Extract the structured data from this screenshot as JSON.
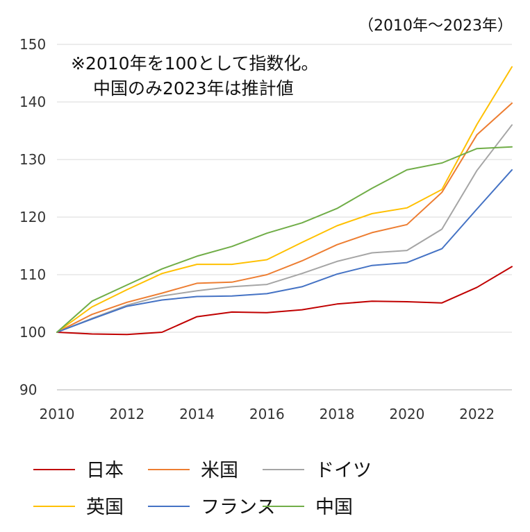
{
  "chart_data": {
    "type": "line",
    "period_label": "（2010年〜2023年）",
    "note_lines": [
      "※2010年を100として指数化。",
      "中国のみ2023年は推計値"
    ],
    "x": [
      2010,
      2011,
      2012,
      2013,
      2014,
      2015,
      2016,
      2017,
      2018,
      2019,
      2020,
      2021,
      2022,
      2023
    ],
    "xticks": [
      "2010",
      "2012",
      "2014",
      "2016",
      "2018",
      "2020",
      "2022"
    ],
    "yticks": [
      "90",
      "100",
      "110",
      "120",
      "130",
      "140",
      "150"
    ],
    "ylim": [
      90,
      150
    ],
    "xlim": [
      2010,
      2023
    ],
    "grid": true,
    "legend_position": "bottom",
    "series": [
      {
        "name": "日本",
        "color": "#c00000",
        "values": [
          100,
          99.7,
          99.6,
          100,
          102.7,
          103.5,
          103.4,
          103.9,
          104.9,
          105.4,
          105.3,
          105.1,
          107.8,
          111.4
        ]
      },
      {
        "name": "米国",
        "color": "#ed7d31",
        "values": [
          100,
          103.1,
          105.2,
          106.8,
          108.5,
          108.7,
          110,
          112.4,
          115.2,
          117.3,
          118.7,
          124.3,
          134.3,
          139.8
        ]
      },
      {
        "name": "ドイツ",
        "color": "#a5a5a5",
        "values": [
          100,
          102.4,
          104.7,
          106.3,
          107.2,
          107.9,
          108.3,
          110.2,
          112.3,
          113.8,
          114.2,
          117.9,
          128.1,
          136
        ]
      },
      {
        "name": "英国",
        "color": "#ffc000",
        "values": [
          100,
          104.4,
          107.4,
          110.2,
          111.8,
          111.8,
          112.6,
          115.6,
          118.5,
          120.6,
          121.6,
          124.8,
          136.1,
          146.1
        ]
      },
      {
        "name": "フランス",
        "color": "#4472c4",
        "values": [
          100,
          102.3,
          104.5,
          105.6,
          106.2,
          106.3,
          106.7,
          107.9,
          110.1,
          111.6,
          112.1,
          114.5,
          121.4,
          128.2
        ]
      },
      {
        "name": "中国",
        "color": "#70ad47",
        "values": [
          100,
          105.4,
          108.2,
          111,
          113.2,
          114.9,
          117.2,
          119,
          121.5,
          125,
          128.2,
          129.4,
          131.9,
          132.2
        ]
      }
    ]
  }
}
